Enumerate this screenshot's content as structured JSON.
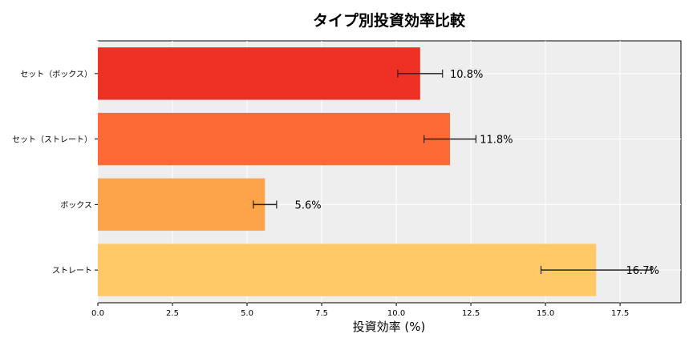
{
  "chart_data": {
    "type": "bar",
    "orientation": "horizontal",
    "title": "タイプ別投資効率比較",
    "xlabel": "投資効率 (%)",
    "ylabel": "",
    "categories": [
      "セット（ボックス）",
      "セット（ストレート）",
      "ボックス",
      "ストレート"
    ],
    "values": [
      10.8,
      11.8,
      5.6,
      16.7
    ],
    "errors": [
      0.75,
      0.87,
      0.39,
      1.85
    ],
    "data_labels": [
      "10.8%",
      "11.8%",
      "5.6%",
      "16.7%"
    ],
    "colors": [
      "#ee3124",
      "#fd6a35",
      "#fda349",
      "#fec966"
    ],
    "xlim": [
      0,
      19.54
    ],
    "xticks": [
      "0.0",
      "2.5",
      "5.0",
      "7.5",
      "10.0",
      "12.5",
      "15.0",
      "17.5"
    ],
    "grid": true,
    "background": "#eeeeee"
  }
}
